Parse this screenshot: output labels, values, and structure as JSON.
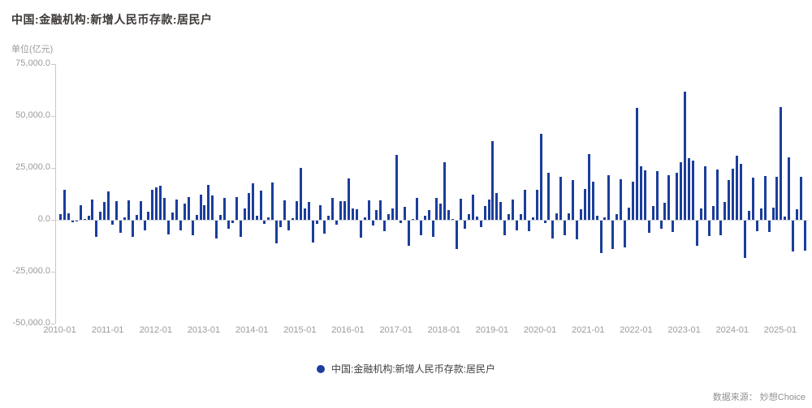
{
  "header": {
    "title": "中国:金融机构:新增人民币存款:居民户",
    "unit_label": "单位(亿元)"
  },
  "legend": {
    "dot_color": "#1b3e9c",
    "label": "中国:金融机构:新增人民币存款:居民户"
  },
  "footer": {
    "source": "数据来源： 妙想Choice"
  },
  "chart_data": {
    "type": "bar",
    "title": "中国:金融机构:新增人民币存款:居民户",
    "ylabel": "单位(亿元)",
    "bar_color": "#1b3e9c",
    "ylim": [
      -50000,
      75000
    ],
    "grid": false,
    "legend_position": "bottom-center",
    "y_ticks": [
      75000,
      50000,
      25000,
      0,
      -25000,
      -50000
    ],
    "y_tick_labels": [
      "75,000.0",
      "50,000.0",
      "25,000.0",
      "0.0",
      "-25,000.0",
      "-50,000.0"
    ],
    "x_tick_labels": [
      "2010-01",
      "2011-01",
      "2012-01",
      "2013-01",
      "2014-01",
      "2015-01",
      "2016-01",
      "2017-01",
      "2018-01",
      "2019-01",
      "2020-01",
      "2021-01",
      "2022-01",
      "2023-01",
      "2024-01",
      "2025-01"
    ],
    "x": [
      "2010-01",
      "2010-02",
      "2010-03",
      "2010-04",
      "2010-05",
      "2010-06",
      "2010-07",
      "2010-08",
      "2010-09",
      "2010-10",
      "2010-11",
      "2010-12",
      "2011-01",
      "2011-02",
      "2011-03",
      "2011-04",
      "2011-05",
      "2011-06",
      "2011-07",
      "2011-08",
      "2011-09",
      "2011-10",
      "2011-11",
      "2011-12",
      "2012-01",
      "2012-02",
      "2012-03",
      "2012-04",
      "2012-05",
      "2012-06",
      "2012-07",
      "2012-08",
      "2012-09",
      "2012-10",
      "2012-11",
      "2012-12",
      "2013-01",
      "2013-02",
      "2013-03",
      "2013-04",
      "2013-05",
      "2013-06",
      "2013-07",
      "2013-08",
      "2013-09",
      "2013-10",
      "2013-11",
      "2013-12",
      "2014-01",
      "2014-02",
      "2014-03",
      "2014-04",
      "2014-05",
      "2014-06",
      "2014-07",
      "2014-08",
      "2014-09",
      "2014-10",
      "2014-11",
      "2014-12",
      "2015-01",
      "2015-02",
      "2015-03",
      "2015-04",
      "2015-05",
      "2015-06",
      "2015-07",
      "2015-08",
      "2015-09",
      "2015-10",
      "2015-11",
      "2015-12",
      "2016-01",
      "2016-02",
      "2016-03",
      "2016-04",
      "2016-05",
      "2016-06",
      "2016-07",
      "2016-08",
      "2016-09",
      "2016-10",
      "2016-11",
      "2016-12",
      "2017-01",
      "2017-02",
      "2017-03",
      "2017-04",
      "2017-05",
      "2017-06",
      "2017-07",
      "2017-08",
      "2017-09",
      "2017-10",
      "2017-11",
      "2017-12",
      "2018-01",
      "2018-02",
      "2018-03",
      "2018-04",
      "2018-05",
      "2018-06",
      "2018-07",
      "2018-08",
      "2018-09",
      "2018-10",
      "2018-11",
      "2018-12",
      "2019-01",
      "2019-02",
      "2019-03",
      "2019-04",
      "2019-05",
      "2019-06",
      "2019-07",
      "2019-08",
      "2019-09",
      "2019-10",
      "2019-11",
      "2019-12",
      "2020-01",
      "2020-02",
      "2020-03",
      "2020-04",
      "2020-05",
      "2020-06",
      "2020-07",
      "2020-08",
      "2020-09",
      "2020-10",
      "2020-11",
      "2020-12",
      "2021-01",
      "2021-02",
      "2021-03",
      "2021-04",
      "2021-05",
      "2021-06",
      "2021-07",
      "2021-08",
      "2021-09",
      "2021-10",
      "2021-11",
      "2021-12",
      "2022-01",
      "2022-02",
      "2022-03",
      "2022-04",
      "2022-05",
      "2022-06",
      "2022-07",
      "2022-08",
      "2022-09",
      "2022-10",
      "2022-11",
      "2022-12",
      "2023-01",
      "2023-02",
      "2023-03",
      "2023-04",
      "2023-05",
      "2023-06",
      "2023-07",
      "2023-08",
      "2023-09",
      "2023-10",
      "2023-11",
      "2023-12",
      "2024-01",
      "2024-02",
      "2024-03",
      "2024-04",
      "2024-05",
      "2024-06",
      "2024-07",
      "2024-08",
      "2024-09",
      "2024-10",
      "2024-11",
      "2024-12",
      "2025-01",
      "2025-02",
      "2025-03",
      "2025-04",
      "2025-05",
      "2025-06",
      "2025-07"
    ],
    "series": [
      {
        "name": "中国:金融机构:新增人民币存款:居民户",
        "values": [
          2800,
          14600,
          3100,
          -600,
          -300,
          6900,
          400,
          2000,
          9700,
          -7800,
          3900,
          8400,
          13600,
          -1900,
          9100,
          -5800,
          1100,
          9300,
          -7800,
          2300,
          8800,
          -4500,
          3900,
          14500,
          15600,
          16600,
          10500,
          -6500,
          3700,
          9700,
          -4500,
          8000,
          10800,
          -7100,
          2500,
          12300,
          6900,
          16800,
          11700,
          -8400,
          2200,
          10400,
          -3900,
          -1200,
          11000,
          -7800,
          5500,
          12700,
          17500,
          1900,
          13900,
          -1600,
          1000,
          18100,
          -11000,
          -3000,
          9500,
          -4500,
          600,
          9100,
          24900,
          5400,
          8400,
          -10500,
          -1500,
          6900,
          -6200,
          2000,
          10400,
          -2000,
          9000,
          9000,
          19800,
          5400,
          5100,
          -8200,
          1300,
          9500,
          -2200,
          4800,
          9500,
          -5200,
          2600,
          5600,
          31100,
          -1300,
          6100,
          -12300,
          500,
          10600,
          -7100,
          1900,
          4800,
          -7800,
          10400,
          7800,
          27900,
          4500,
          500,
          -13600,
          10100,
          -3900,
          2600,
          12300,
          1500,
          -3200,
          6500,
          9700,
          37800,
          13000,
          8400,
          -7100,
          2600,
          9700,
          -4500,
          2600,
          14300,
          -5200,
          1300,
          14500,
          41500,
          -1200,
          22700,
          -8400,
          3200,
          20700,
          -7200,
          3300,
          19200,
          -9100,
          4900,
          15000,
          31800,
          18400,
          1900,
          -15600,
          1300,
          21400,
          -13600,
          2600,
          19700,
          -13000,
          5800,
          18400,
          53800,
          25900,
          24000,
          -5800,
          6800,
          23300,
          -4100,
          8300,
          21400,
          -5400,
          22500,
          27600,
          61600,
          29800,
          28400,
          -12300,
          5400,
          25700,
          -7500,
          6700,
          24400,
          -7100,
          8400,
          19200,
          24800,
          30900,
          27000,
          -17900,
          4200,
          20500,
          -5200,
          5400,
          21000,
          -5400,
          5800,
          20700,
          54200,
          1500,
          30200,
          -14900,
          5200,
          20700,
          -14500
        ]
      }
    ]
  }
}
